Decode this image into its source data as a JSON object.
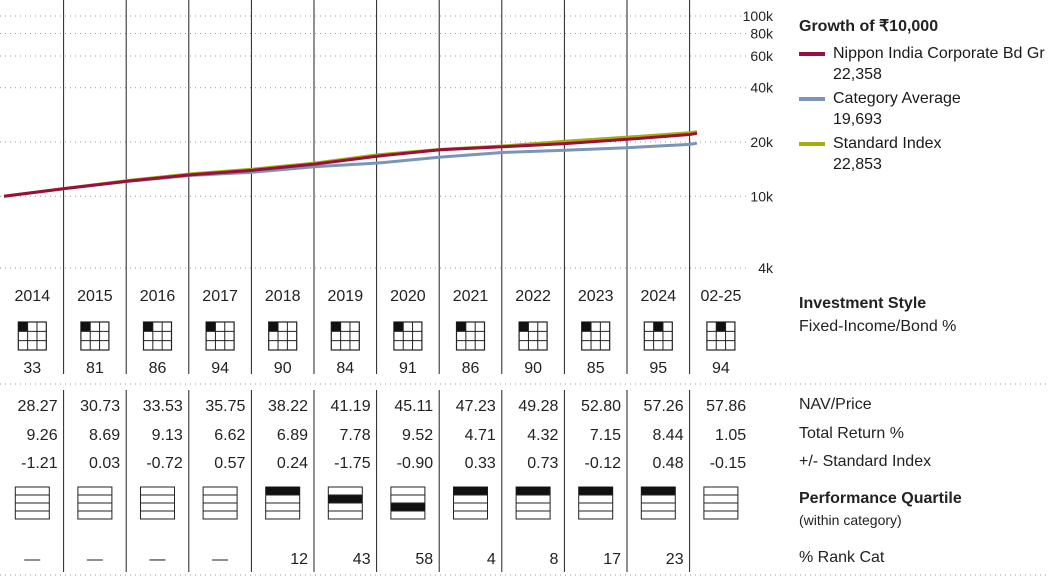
{
  "chart_data": {
    "type": "line",
    "title": "Growth of ₹10,000",
    "yscale": "log",
    "yticks": [
      "100k",
      "80k",
      "60k",
      "40k",
      "20k",
      "10k",
      "4k"
    ],
    "ytick_values": [
      100000,
      80000,
      60000,
      40000,
      20000,
      10000,
      4000
    ],
    "ylim": [
      4000,
      100000
    ],
    "xlim": [
      2014,
      2025.2
    ],
    "series": [
      {
        "name": "Nippon India Corporate Bd Gr",
        "end_value": "22,358",
        "color": "#9b0f3a",
        "x": [
          2014,
          2015,
          2016,
          2017,
          2018,
          2019,
          2020,
          2021,
          2022,
          2023,
          2024,
          2025,
          2025.2
        ],
        "y": [
          10000,
          11050,
          12150,
          13150,
          13950,
          15100,
          16700,
          18100,
          18800,
          19600,
          20700,
          22000,
          22358
        ]
      },
      {
        "name": "Category Average",
        "end_value": "19,693",
        "color": "#7b95b8",
        "x": [
          2014,
          2015,
          2016,
          2017,
          2018,
          2019,
          2020,
          2021,
          2022,
          2023,
          2024,
          2025,
          2025.2
        ],
        "y": [
          10000,
          11050,
          12100,
          13050,
          13600,
          14600,
          15300,
          16500,
          17500,
          18000,
          18600,
          19400,
          19693
        ]
      },
      {
        "name": "Standard Index",
        "end_value": "22,853",
        "color": "#a6ad10",
        "x": [
          2014,
          2015,
          2016,
          2017,
          2018,
          2019,
          2020,
          2021,
          2022,
          2023,
          2024,
          2025,
          2025.2
        ],
        "y": [
          10000,
          11080,
          12250,
          13300,
          14150,
          15300,
          17000,
          18200,
          19000,
          20200,
          21300,
          22500,
          22853
        ]
      }
    ]
  },
  "years": [
    "2014",
    "2015",
    "2016",
    "2017",
    "2018",
    "2019",
    "2020",
    "2021",
    "2022",
    "2023",
    "2024",
    "02-25"
  ],
  "style_boxes": [
    0,
    0,
    0,
    0,
    0,
    0,
    0,
    0,
    0,
    0,
    1,
    1
  ],
  "style_values": [
    "33",
    "81",
    "86",
    "94",
    "90",
    "84",
    "91",
    "86",
    "90",
    "85",
    "95",
    "94"
  ],
  "nav": [
    "28.27",
    "30.73",
    "33.53",
    "35.75",
    "38.22",
    "41.19",
    "45.11",
    "47.23",
    "49.28",
    "52.80",
    "57.26",
    "57.86"
  ],
  "total_return": [
    "9.26",
    "8.69",
    "9.13",
    "6.62",
    "6.89",
    "7.78",
    "9.52",
    "4.71",
    "4.32",
    "7.15",
    "8.44",
    "1.05"
  ],
  "vs_index": [
    "-1.21",
    "0.03",
    "-0.72",
    "0.57",
    "0.24",
    "-1.75",
    "-0.90",
    "0.33",
    "0.73",
    "-0.12",
    "0.48",
    "-0.15"
  ],
  "quartiles": [
    0,
    0,
    0,
    0,
    1,
    2,
    3,
    1,
    1,
    1,
    1,
    0
  ],
  "rank_cat": [
    "—",
    "—",
    "—",
    "—",
    "12",
    "43",
    "58",
    "4",
    "8",
    "17",
    "23",
    ""
  ],
  "labels": {
    "growth_title": "Growth of ₹10,000",
    "investment_style": "Investment Style",
    "style_type": "Fixed-Income/Bond %",
    "nav_price": "NAV/Price",
    "total_return": "Total Return %",
    "vs_index": "+/- Standard Index",
    "perf_quartile": "Performance Quartile",
    "within_category": "(within category)",
    "rank_cat": "% Rank Cat"
  }
}
